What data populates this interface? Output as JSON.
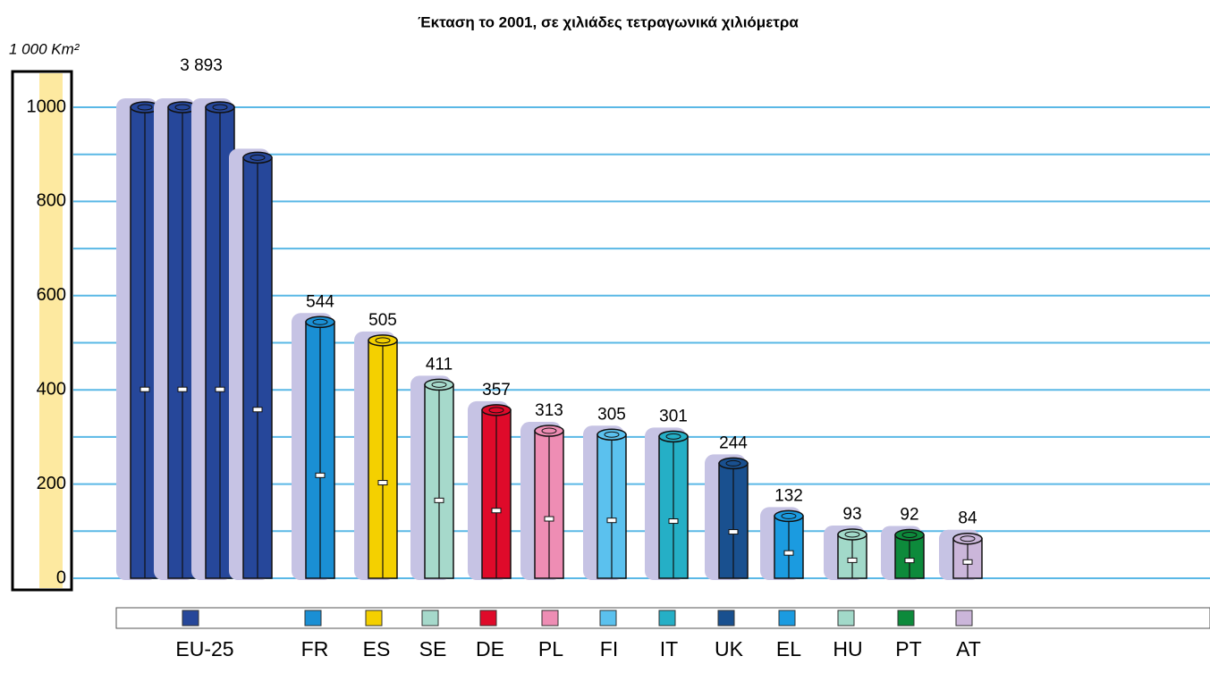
{
  "chart_data": {
    "type": "bar",
    "title": "Έκταση το 2001, σε χιλιάδες τετραγωνικά χιλιόμετρα",
    "y_label": "1 000 Km²",
    "categories": [
      "EU-25",
      "FR",
      "ES",
      "SE",
      "DE",
      "PL",
      "FI",
      "IT",
      "UK",
      "EL",
      "HU",
      "PT",
      "AT"
    ],
    "values": [
      3893,
      544,
      505,
      411,
      357,
      313,
      305,
      301,
      244,
      132,
      93,
      92,
      84
    ],
    "value_labels": [
      "3 893",
      "544",
      "505",
      "411",
      "357",
      "313",
      "305",
      "301",
      "244",
      "132",
      "93",
      "92",
      "84"
    ],
    "colors": [
      "#26479a",
      "#1a8fd4",
      "#f4d000",
      "#a6d9cb",
      "#df0a2a",
      "#ee8db4",
      "#5bc1ee",
      "#25afc6",
      "#19508f",
      "#1b9be0",
      "#a2d9c9",
      "#0d8a3b",
      "#cbb6da"
    ],
    "ylim": [
      0,
      1000
    ],
    "yticks": [
      0,
      200,
      400,
      600,
      800,
      1000
    ],
    "minor_yticks": [
      100,
      300,
      500,
      700,
      900
    ],
    "grid": true
  }
}
